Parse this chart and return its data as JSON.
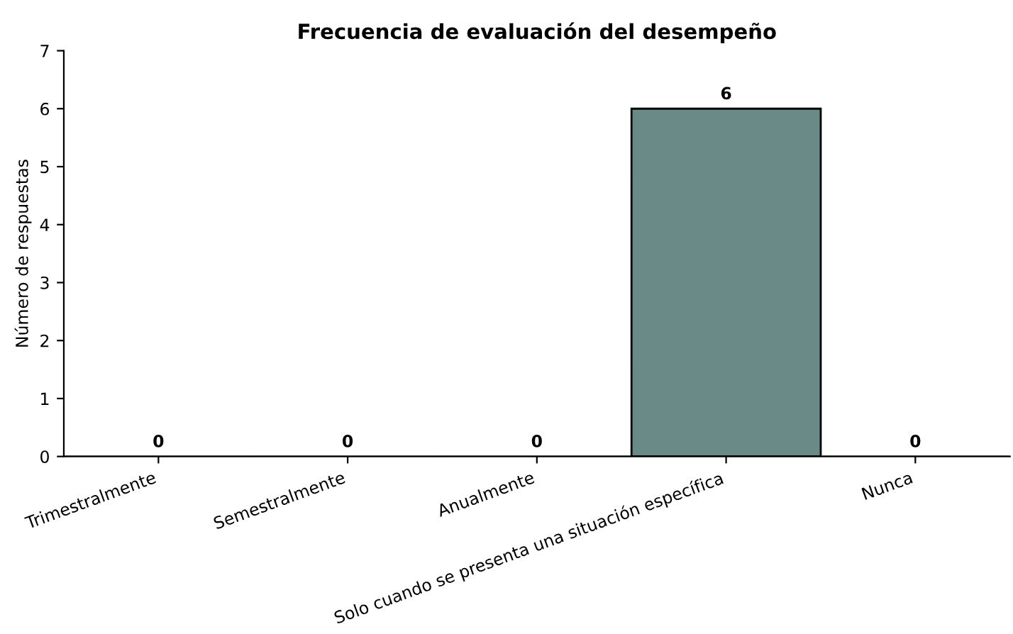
{
  "chart_data": {
    "type": "bar",
    "title": "Frecuencia de evaluación del desempeño",
    "ylabel": "Número de respuestas",
    "categories": [
      "Trimestralmente",
      "Semestralmente",
      "Anualmente",
      "Solo cuando se presenta una situación específica",
      "Nunca"
    ],
    "values": [
      0,
      0,
      0,
      6,
      0
    ],
    "color": "#6a8a87",
    "ylim": [
      0,
      7
    ],
    "yticks": [
      0,
      1,
      2,
      3,
      4,
      5,
      6,
      7
    ],
    "data_labels": true,
    "grid": false
  }
}
